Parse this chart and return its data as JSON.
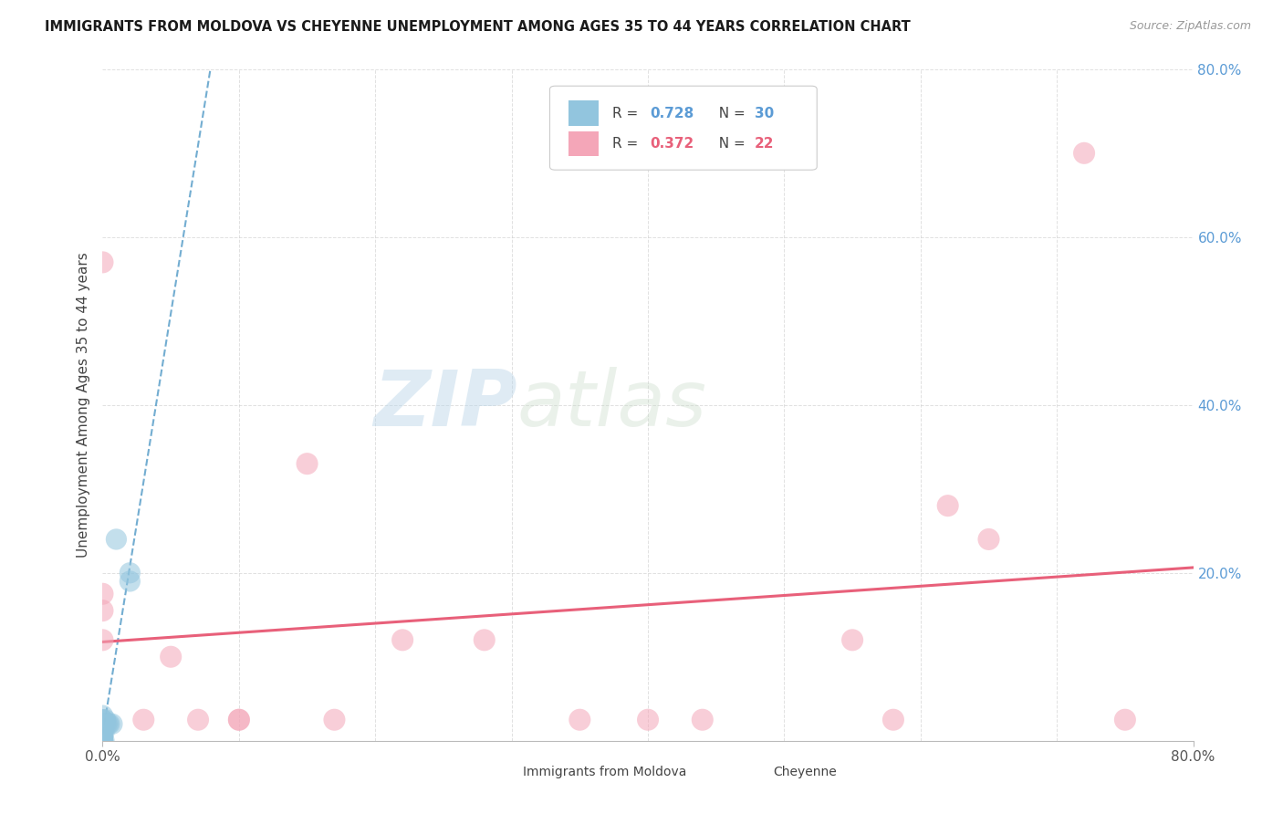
{
  "title": "IMMIGRANTS FROM MOLDOVA VS CHEYENNE UNEMPLOYMENT AMONG AGES 35 TO 44 YEARS CORRELATION CHART",
  "source": "Source: ZipAtlas.com",
  "ylabel": "Unemployment Among Ages 35 to 44 years",
  "xlim": [
    0.0,
    0.8
  ],
  "ylim": [
    0.0,
    0.8
  ],
  "color_moldova": "#92c5de",
  "color_cheyenne": "#f4a6b8",
  "color_moldova_line": "#5a9fc9",
  "color_cheyenne_line": "#e8607a",
  "watermark_zip": "ZIP",
  "watermark_atlas": "atlas",
  "moldova_x": [
    0.0,
    0.0,
    0.0,
    0.0,
    0.0,
    0.0,
    0.0,
    0.0,
    0.0,
    0.0,
    0.0,
    0.0,
    0.0,
    0.0,
    0.0,
    0.0,
    0.0,
    0.0,
    0.001,
    0.001,
    0.001,
    0.002,
    0.002,
    0.003,
    0.004,
    0.005,
    0.007,
    0.01,
    0.02,
    0.02
  ],
  "moldova_y": [
    0.0,
    0.0,
    0.0,
    0.0,
    0.0,
    0.0,
    0.005,
    0.008,
    0.01,
    0.012,
    0.015,
    0.015,
    0.018,
    0.02,
    0.02,
    0.025,
    0.025,
    0.03,
    0.0,
    0.01,
    0.02,
    0.02,
    0.025,
    0.02,
    0.02,
    0.02,
    0.02,
    0.24,
    0.19,
    0.2
  ],
  "cheyenne_x": [
    0.0,
    0.0,
    0.0,
    0.0,
    0.03,
    0.05,
    0.07,
    0.1,
    0.1,
    0.15,
    0.17,
    0.22,
    0.28,
    0.35,
    0.4,
    0.44,
    0.55,
    0.58,
    0.62,
    0.65,
    0.72,
    0.75
  ],
  "cheyenne_y": [
    0.12,
    0.155,
    0.175,
    0.57,
    0.025,
    0.1,
    0.025,
    0.025,
    0.025,
    0.33,
    0.025,
    0.12,
    0.12,
    0.025,
    0.025,
    0.025,
    0.12,
    0.025,
    0.28,
    0.24,
    0.7,
    0.025
  ],
  "background_color": "#ffffff",
  "grid_color": "#cccccc"
}
